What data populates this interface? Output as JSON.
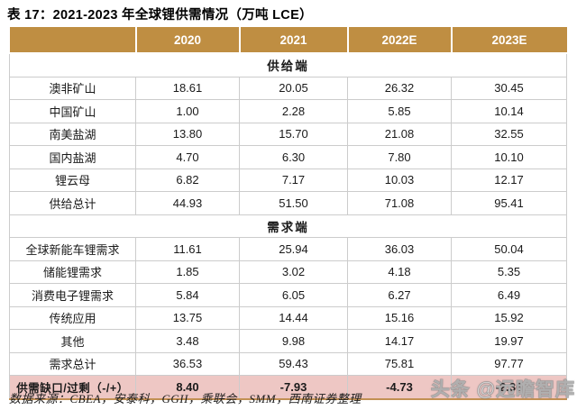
{
  "title": "表 17：2021-2023 年全球锂供需情况（万吨 LCE）",
  "table": {
    "columns": [
      "",
      "2020",
      "2021",
      "2022E",
      "2023E"
    ],
    "sections": [
      {
        "header": "供给端",
        "rows": [
          {
            "label": "澳非矿山",
            "values": [
              "18.61",
              "20.05",
              "26.32",
              "30.45"
            ]
          },
          {
            "label": "中国矿山",
            "values": [
              "1.00",
              "2.28",
              "5.85",
              "10.14"
            ]
          },
          {
            "label": "南美盐湖",
            "values": [
              "13.80",
              "15.70",
              "21.08",
              "32.55"
            ]
          },
          {
            "label": "国内盐湖",
            "values": [
              "4.70",
              "6.30",
              "7.80",
              "10.10"
            ]
          },
          {
            "label": "锂云母",
            "values": [
              "6.82",
              "7.17",
              "10.03",
              "12.17"
            ]
          },
          {
            "label": "供给总计",
            "values": [
              "44.93",
              "51.50",
              "71.08",
              "95.41"
            ]
          }
        ]
      },
      {
        "header": "需求端",
        "rows": [
          {
            "label": "全球新能车锂需求",
            "values": [
              "11.61",
              "25.94",
              "36.03",
              "50.04"
            ]
          },
          {
            "label": "储能锂需求",
            "values": [
              "1.85",
              "3.02",
              "4.18",
              "5.35"
            ]
          },
          {
            "label": "消费电子锂需求",
            "values": [
              "5.84",
              "6.05",
              "6.27",
              "6.49"
            ]
          },
          {
            "label": "传统应用",
            "values": [
              "13.75",
              "14.44",
              "15.16",
              "15.92"
            ]
          },
          {
            "label": "其他",
            "values": [
              "3.48",
              "9.98",
              "14.17",
              "19.97"
            ]
          },
          {
            "label": "需求总计",
            "values": [
              "36.53",
              "59.43",
              "75.81",
              "97.77"
            ]
          }
        ]
      }
    ],
    "summary_row": {
      "label": "供需缺口/过剩（-/+）",
      "values": [
        "8.40",
        "-7.93",
        "-4.73",
        "-2.36"
      ]
    }
  },
  "footer": "数据来源：CBEA，安泰科，GGII，乘联会，SMM，西南证券整理",
  "watermark": "头条 @远瞻智库",
  "colors": {
    "header_bg": "#bf8e42",
    "highlight_bg": "#eec7c4",
    "border": "#cccccc",
    "table_bottom_border": "#c29054"
  }
}
